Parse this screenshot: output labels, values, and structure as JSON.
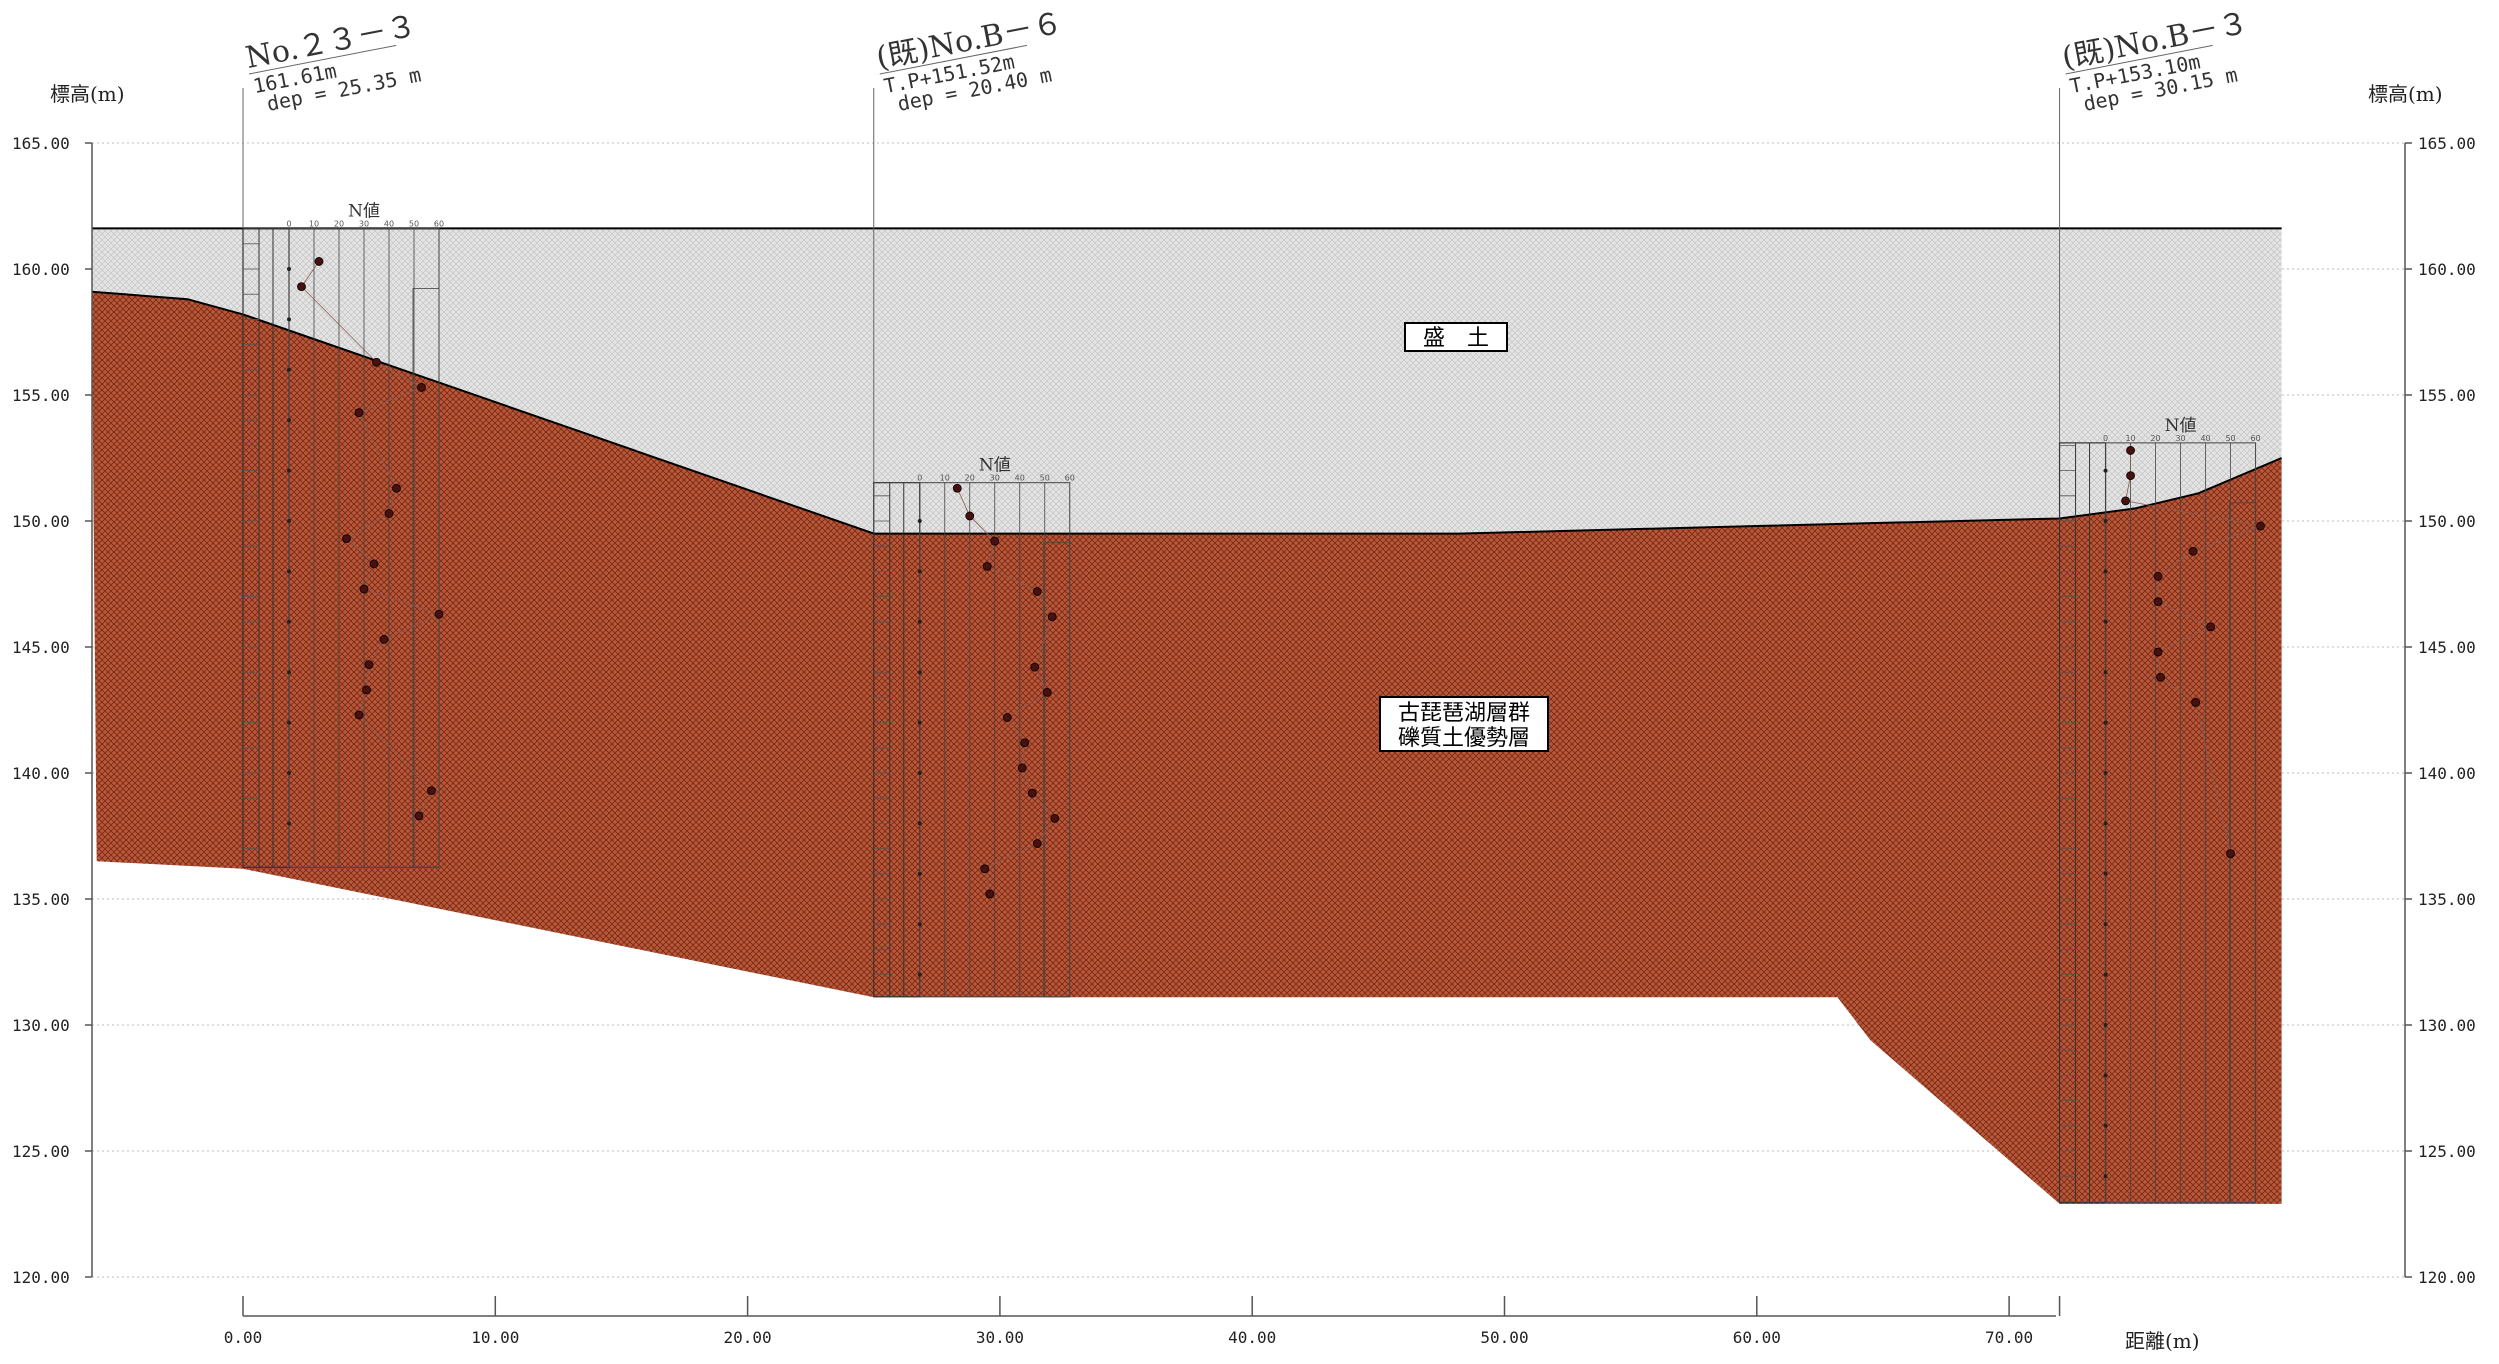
{
  "y_axis": {
    "title_left": "標高(m)",
    "title_right": "標高(m)",
    "ticks": [
      "165.00",
      "160.00",
      "155.00",
      "150.00",
      "145.00",
      "140.00",
      "135.00",
      "130.00",
      "125.00",
      "120.00"
    ]
  },
  "x_axis": {
    "title": "距離(m)",
    "ticks": [
      "0.00",
      "10.00",
      "20.00",
      "30.00",
      "40.00",
      "50.00",
      "60.00",
      "70.00"
    ]
  },
  "colors": {
    "fill_layer": "#d9d9d9",
    "gravel_layer": "#b4502e",
    "line": "#000000",
    "n_marker": "#4a1010"
  },
  "layers": {
    "fill": {
      "label": "盛　土"
    },
    "gravel": {
      "label_line1": "古琵琶湖層群",
      "label_line2": "礫質土優勢層"
    }
  },
  "boreholes": [
    {
      "name": "No.２３－３",
      "line1": "161.61m",
      "line2": "dep = 25.35 m",
      "x": 0,
      "top": 161.61,
      "bottom": 136.26,
      "n_label": "N値",
      "n_scale": [
        "0",
        "10",
        "20",
        "30",
        "40",
        "50",
        "60"
      ],
      "n_values": [
        [
          160.3,
          12
        ],
        [
          159.3,
          5
        ],
        [
          156.3,
          35
        ],
        [
          155.3,
          53
        ],
        [
          154.3,
          28
        ],
        [
          151.3,
          43
        ],
        [
          150.3,
          40
        ],
        [
          149.3,
          23
        ],
        [
          148.3,
          34
        ],
        [
          147.3,
          30
        ],
        [
          146.3,
          60
        ],
        [
          145.3,
          38
        ],
        [
          144.3,
          32
        ],
        [
          143.3,
          31
        ],
        [
          142.3,
          28
        ],
        [
          139.3,
          57
        ],
        [
          138.3,
          52
        ]
      ]
    },
    {
      "name": "(既)No.B－６",
      "line1": "T.P+151.52m",
      "line2": "dep = 20.40 m",
      "x": 25,
      "top": 151.52,
      "bottom": 131.12,
      "n_label": "N値",
      "n_scale": [
        "0",
        "10",
        "20",
        "30",
        "40",
        "50",
        "60"
      ],
      "n_values": [
        [
          151.3,
          15
        ],
        [
          150.2,
          20
        ],
        [
          149.2,
          30
        ],
        [
          148.2,
          27
        ],
        [
          147.2,
          47
        ],
        [
          146.2,
          53
        ],
        [
          144.2,
          46
        ],
        [
          143.2,
          51
        ],
        [
          142.2,
          35
        ],
        [
          141.2,
          42
        ],
        [
          140.2,
          41
        ],
        [
          139.2,
          45
        ],
        [
          138.2,
          54
        ],
        [
          137.2,
          47
        ],
        [
          136.2,
          26
        ],
        [
          135.2,
          28
        ]
      ]
    },
    {
      "name": "(既)No.B－３",
      "line1": "T.P+153.10m",
      "line2": "dep = 30.15 m",
      "x": 72,
      "top": 153.1,
      "bottom": 122.95,
      "n_label": "N値",
      "n_scale": [
        "0",
        "10",
        "20",
        "30",
        "40",
        "50",
        "60"
      ],
      "n_values": [
        [
          152.8,
          10
        ],
        [
          151.8,
          10
        ],
        [
          150.8,
          8
        ],
        [
          149.8,
          62
        ],
        [
          148.8,
          35
        ],
        [
          147.8,
          21
        ],
        [
          146.8,
          21
        ],
        [
          145.8,
          42
        ],
        [
          144.8,
          21
        ],
        [
          143.8,
          22
        ],
        [
          142.8,
          36
        ],
        [
          136.8,
          50
        ]
      ]
    }
  ],
  "surfaces": {
    "ground_line": [
      [
        -6,
        161.61
      ],
      [
        80.8,
        161.61
      ]
    ],
    "fill_base": [
      [
        -6,
        159.1
      ],
      [
        -2.2,
        158.8
      ],
      [
        0,
        158.2
      ],
      [
        2,
        157.5
      ],
      [
        25,
        149.5
      ],
      [
        32,
        149.5
      ],
      [
        48.2,
        149.5
      ],
      [
        60,
        149.8
      ],
      [
        72,
        150.1
      ],
      [
        75,
        150.5
      ],
      [
        77.5,
        151.1
      ],
      [
        80.8,
        152.5
      ]
    ],
    "gravel_base": [
      [
        -5.8,
        136.5
      ],
      [
        0,
        136.2
      ],
      [
        25,
        131.1
      ],
      [
        63.2,
        131.1
      ],
      [
        64.5,
        129.4
      ],
      [
        72,
        122.9
      ],
      [
        80.8,
        122.9
      ]
    ]
  }
}
